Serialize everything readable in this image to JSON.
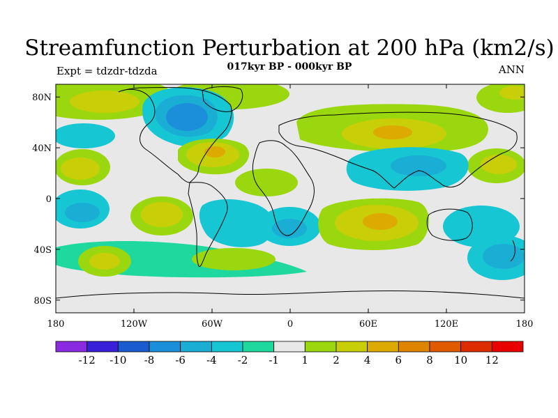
{
  "title": "Streamfunction Perturbation at 200 hPa (km2/s)",
  "subtitle": "017kyr BP - 000kyr BP",
  "left_label": "Expt = tdzdr-tdzda",
  "right_label": "ANN",
  "lat_ticks": [
    "80N",
    "40N",
    "0",
    "40S",
    "80S"
  ],
  "lat_values": [
    80,
    40,
    0,
    -40,
    -80
  ],
  "lon_ticks": [
    "180",
    "120W",
    "60W",
    "0",
    "60E",
    "120E",
    "180"
  ],
  "lon_values": [
    -180,
    -120,
    -60,
    0,
    60,
    120,
    180
  ],
  "colorbar": {
    "labels": [
      "-12",
      "-10",
      "-8",
      "-6",
      "-4",
      "-2",
      "-1",
      "1",
      "2",
      "4",
      "6",
      "8",
      "10",
      "12"
    ],
    "colors": [
      "#8a2be2",
      "#3a1fd8",
      "#1a5ccf",
      "#1b8fd9",
      "#1aaed4",
      "#16c6d3",
      "#1fd89e",
      "#e8e8e8",
      "#9ad70e",
      "#c8cf08",
      "#dcaa00",
      "#df8400",
      "#e05a00",
      "#dd2d00",
      "#e80000"
    ]
  },
  "map": {
    "projection": "cylindrical-equidistant",
    "lon_range": [
      -180,
      180
    ],
    "lat_range": [
      -90,
      90
    ]
  }
}
